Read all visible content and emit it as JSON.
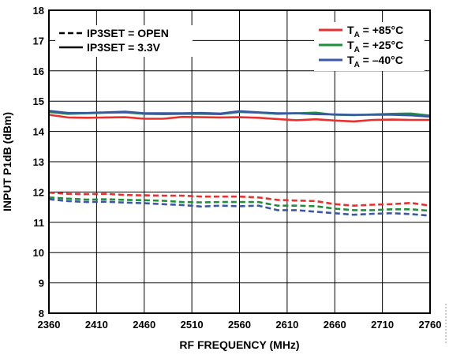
{
  "chart_data": {
    "type": "line",
    "xlabel": "RF FREQUENCY (MHz)",
    "ylabel": "INPUT P1dB (dBm)",
    "xlim": [
      2360,
      2760
    ],
    "ylim": [
      8,
      18
    ],
    "xticks": [
      2360,
      2410,
      2460,
      2510,
      2560,
      2610,
      2660,
      2710,
      2760
    ],
    "yticks": [
      8,
      9,
      10,
      11,
      12,
      13,
      14,
      15,
      16,
      17,
      18
    ],
    "grid": true,
    "x": [
      2360,
      2380,
      2400,
      2420,
      2440,
      2460,
      2480,
      2500,
      2520,
      2540,
      2560,
      2580,
      2600,
      2620,
      2640,
      2660,
      2680,
      2700,
      2720,
      2740,
      2760
    ],
    "series": [
      {
        "name": "IP3SET = 3.3V, TA = +85°C",
        "color": "#e8312f",
        "dash": "solid",
        "values": [
          14.55,
          14.46,
          14.45,
          14.46,
          14.47,
          14.42,
          14.42,
          14.48,
          14.47,
          14.46,
          14.47,
          14.45,
          14.41,
          14.37,
          14.4,
          14.36,
          14.33,
          14.38,
          14.39,
          14.38,
          14.38
        ]
      },
      {
        "name": "IP3SET = 3.3V, TA = +25°C",
        "color": "#1f8f3a",
        "dash": "solid",
        "values": [
          14.64,
          14.58,
          14.6,
          14.62,
          14.63,
          14.58,
          14.57,
          14.58,
          14.58,
          14.57,
          14.64,
          14.62,
          14.58,
          14.6,
          14.62,
          14.55,
          14.54,
          14.56,
          14.58,
          14.59,
          14.52
        ]
      },
      {
        "name": "IP3SET = 3.3V, TA = -40°C",
        "color": "#3b57a7",
        "dash": "solid",
        "values": [
          14.68,
          14.61,
          14.61,
          14.63,
          14.65,
          14.6,
          14.6,
          14.6,
          14.61,
          14.59,
          14.67,
          14.63,
          14.6,
          14.6,
          14.57,
          14.56,
          14.55,
          14.55,
          14.55,
          14.53,
          14.49
        ]
      },
      {
        "name": "IP3SET = OPEN, TA = +85°C",
        "color": "#e8312f",
        "dash": "dashed",
        "values": [
          11.98,
          11.94,
          11.93,
          11.94,
          11.9,
          11.89,
          11.88,
          11.88,
          11.85,
          11.85,
          11.85,
          11.82,
          11.74,
          11.72,
          11.7,
          11.6,
          11.55,
          11.58,
          11.6,
          11.64,
          11.55
        ]
      },
      {
        "name": "IP3SET = OPEN, TA = +25°C",
        "color": "#1f8f3a",
        "dash": "dashed",
        "values": [
          11.82,
          11.78,
          11.75,
          11.76,
          11.74,
          11.73,
          11.71,
          11.67,
          11.66,
          11.67,
          11.67,
          11.67,
          11.55,
          11.55,
          11.53,
          11.45,
          11.4,
          11.4,
          11.43,
          11.43,
          11.38
        ]
      },
      {
        "name": "IP3SET = OPEN, TA = -40°C",
        "color": "#3b57a7",
        "dash": "dashed",
        "values": [
          11.76,
          11.7,
          11.67,
          11.68,
          11.65,
          11.63,
          11.6,
          11.57,
          11.52,
          11.55,
          11.53,
          11.55,
          11.4,
          11.4,
          11.35,
          11.3,
          11.25,
          11.28,
          11.3,
          11.27,
          11.22
        ]
      }
    ]
  },
  "legend_style": {
    "items": [
      {
        "label": "IP3SET = OPEN",
        "dash": "dashed"
      },
      {
        "label": "IP3SET = 3.3V",
        "dash": "solid"
      }
    ]
  },
  "legend_temp": {
    "items": [
      {
        "t": "T",
        "sub": "A",
        "rest": " = +85°C",
        "color": "#e8312f"
      },
      {
        "t": "T",
        "sub": "A",
        "rest": " = +25°C",
        "color": "#1f8f3a"
      },
      {
        "t": "T",
        "sub": "A",
        "rest": " = –40°C",
        "color": "#3b57a7"
      }
    ]
  }
}
